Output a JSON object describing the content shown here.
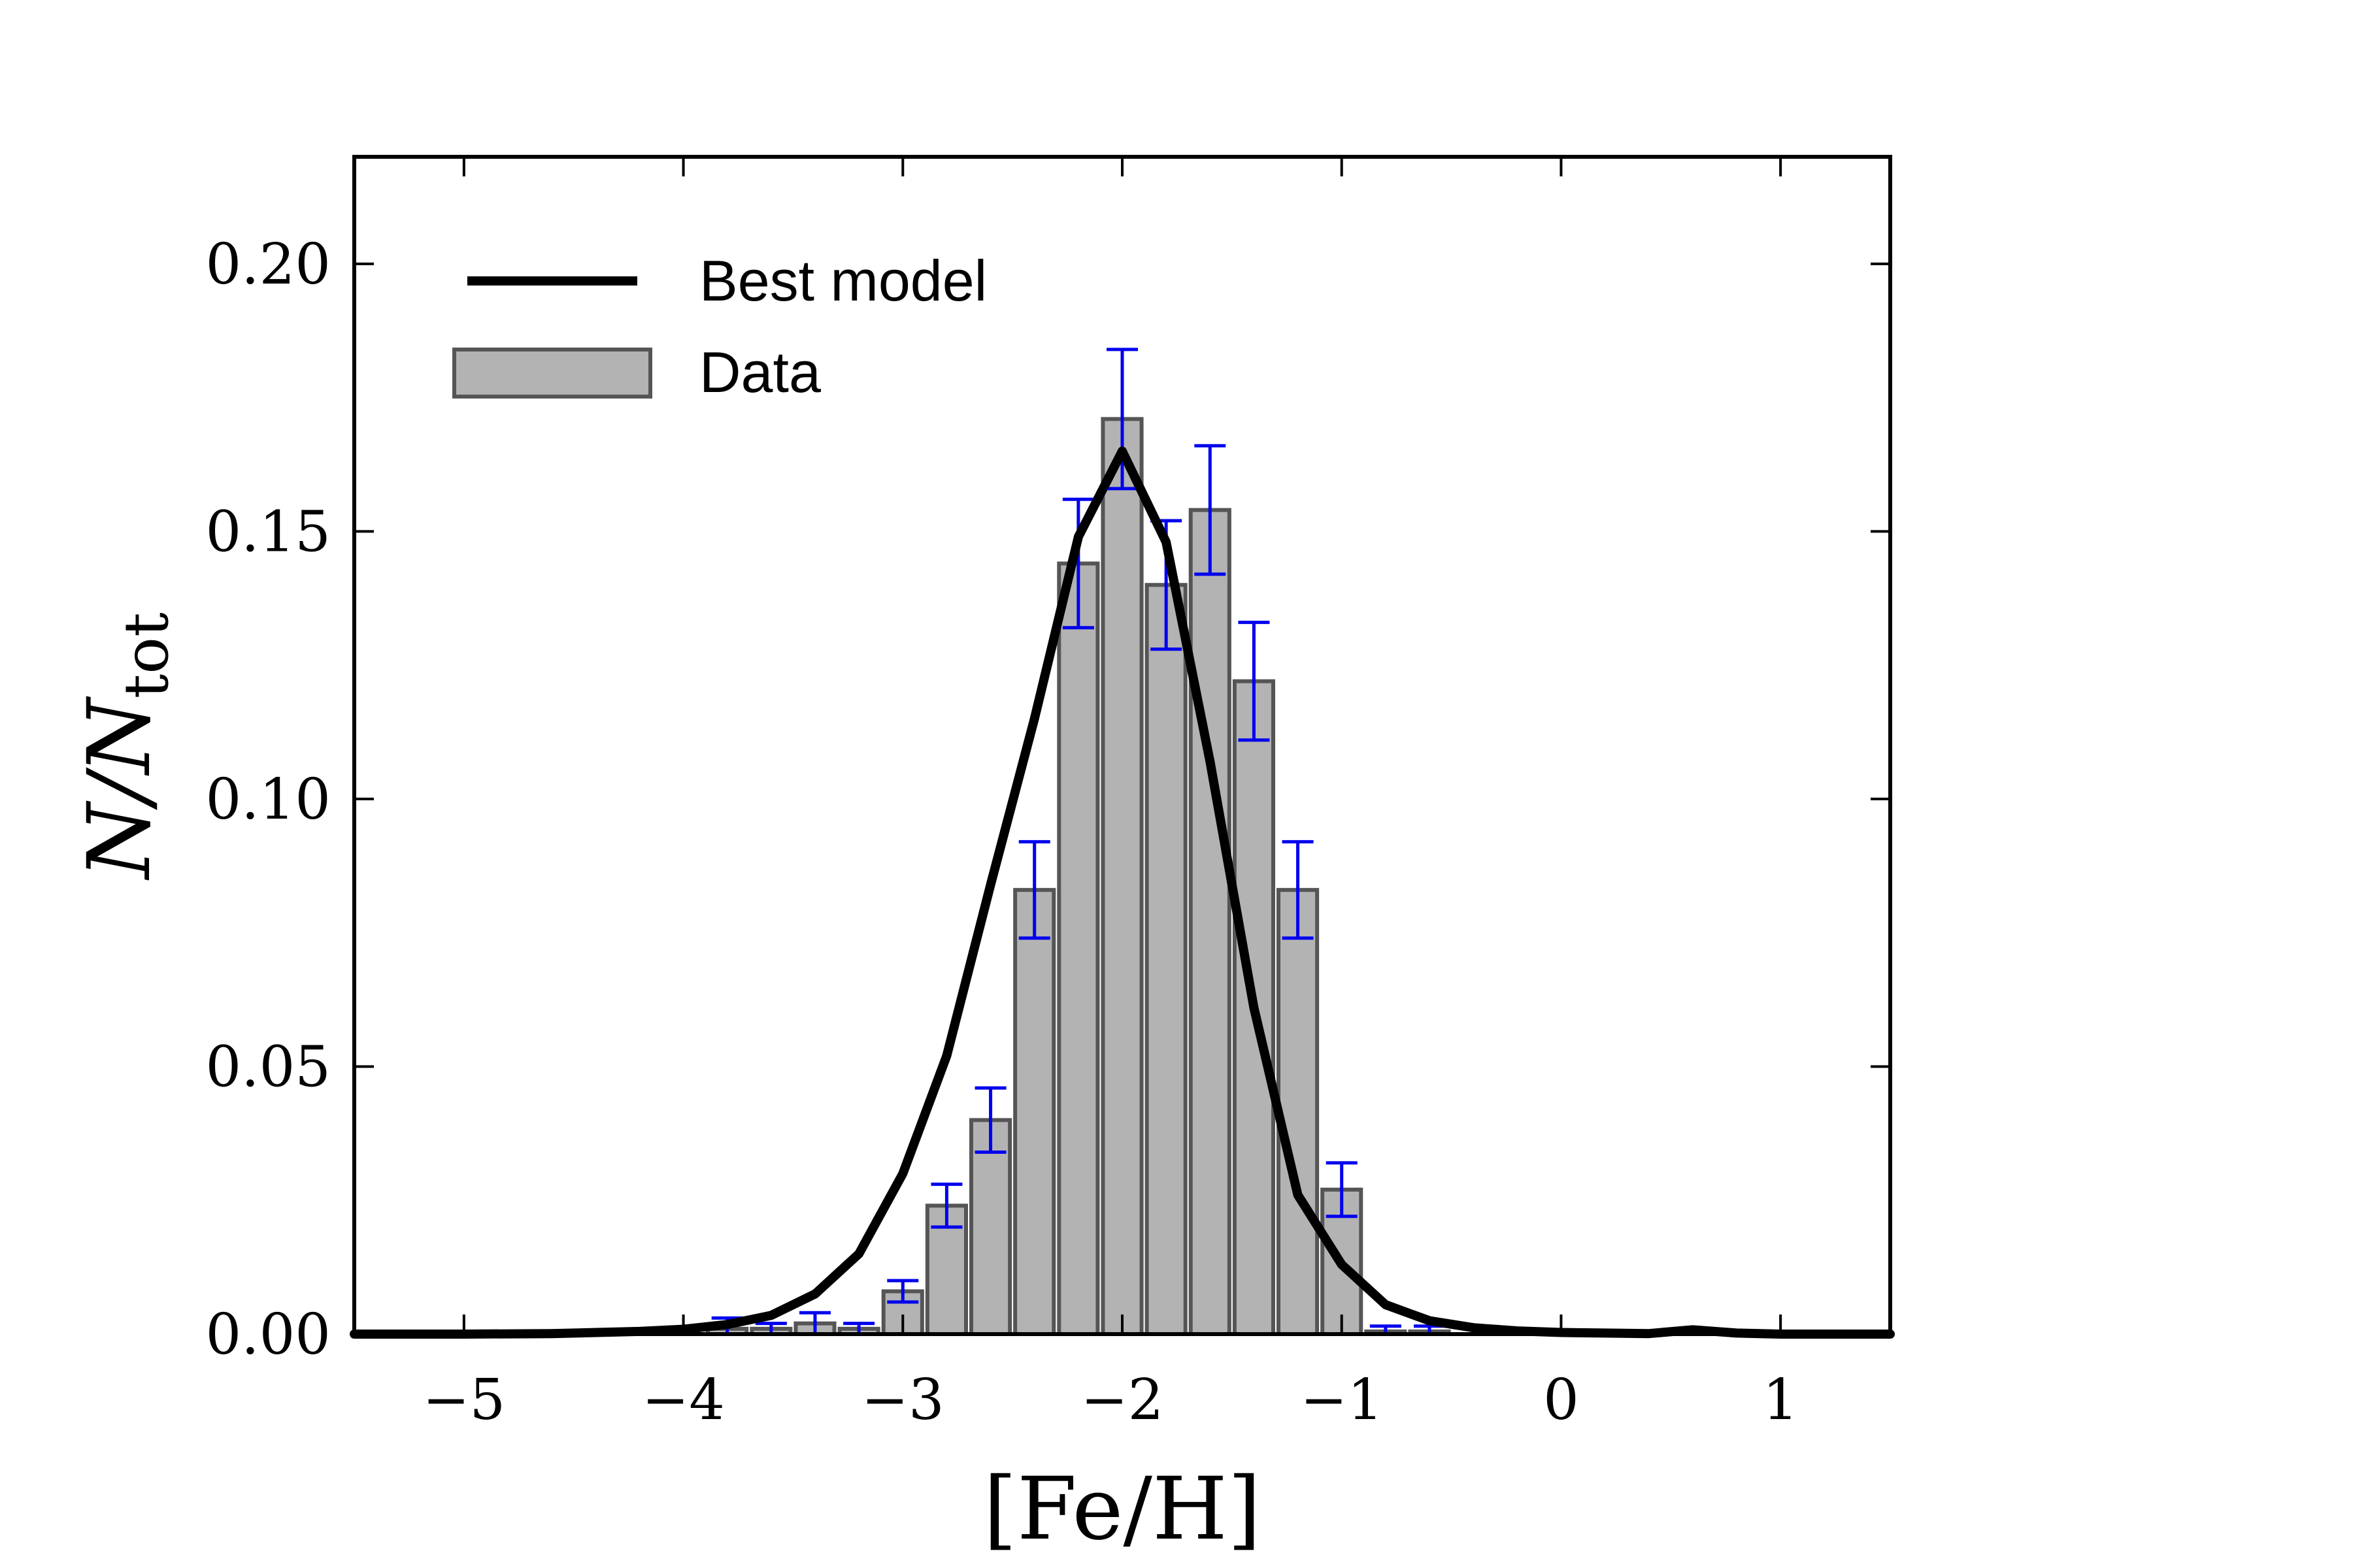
{
  "chart_data": {
    "type": "bar",
    "xlabel": "[Fe/H]",
    "ylabel": {
      "main": "N/N",
      "sub": "tot"
    },
    "xlim": [
      -5.5,
      1.5
    ],
    "ylim": [
      0,
      0.22
    ],
    "xticks": [
      -5,
      -4,
      -3,
      -2,
      -1,
      0,
      1
    ],
    "xtick_labels": [
      "−5",
      "−4",
      "−3",
      "−2",
      "−1",
      "0",
      "1"
    ],
    "yticks": [
      0.0,
      0.05,
      0.1,
      0.15,
      0.2
    ],
    "ytick_labels": [
      "0.00",
      "0.05",
      "0.10",
      "0.15",
      "0.20"
    ],
    "legend": [
      {
        "label": "Best model",
        "kind": "line",
        "color": "#000000"
      },
      {
        "label": "Data",
        "kind": "patch",
        "color": "#b3b3b3"
      }
    ],
    "legend_position": "top-left",
    "bar_color": "#b3b3b3",
    "bar_edge_color": "#555555",
    "errorbar_color": "#0000ee",
    "line_color": "#000000",
    "bar_width": 0.2,
    "histogram": {
      "x": [
        -3.8,
        -3.6,
        -3.4,
        -3.2,
        -3.0,
        -2.8,
        -2.6,
        -2.4,
        -2.2,
        -2.0,
        -1.8,
        -1.6,
        -1.4,
        -1.2,
        -1.0,
        -0.8,
        -0.6
      ],
      "values": [
        0.001,
        0.001,
        0.002,
        0.001,
        0.008,
        0.024,
        0.04,
        0.083,
        0.144,
        0.171,
        0.14,
        0.154,
        0.122,
        0.083,
        0.027,
        0.0005,
        0.0005
      ],
      "errors": [
        0.002,
        0.001,
        0.002,
        0.001,
        0.002,
        0.004,
        0.006,
        0.009,
        0.012,
        0.013,
        0.012,
        0.012,
        0.011,
        0.009,
        0.005,
        0.001,
        0.001
      ]
    },
    "series": [
      {
        "name": "Best model",
        "x": [
          -5.5,
          -5.0,
          -4.6,
          -4.2,
          -4.0,
          -3.8,
          -3.6,
          -3.4,
          -3.2,
          -3.0,
          -2.8,
          -2.6,
          -2.4,
          -2.2,
          -2.0,
          -1.8,
          -1.6,
          -1.4,
          -1.2,
          -1.0,
          -0.8,
          -0.6,
          -0.4,
          -0.2,
          0.0,
          0.2,
          0.4,
          0.6,
          0.8,
          1.0,
          1.5
        ],
        "values": [
          0.0,
          0.0,
          0.0001,
          0.0005,
          0.0009,
          0.0018,
          0.0035,
          0.0075,
          0.015,
          0.03,
          0.052,
          0.084,
          0.115,
          0.149,
          0.165,
          0.148,
          0.107,
          0.061,
          0.026,
          0.013,
          0.0055,
          0.0025,
          0.0012,
          0.0006,
          0.0003,
          0.0002,
          0.0001,
          0.0008,
          0.0002,
          0.0,
          0.0
        ]
      }
    ]
  }
}
